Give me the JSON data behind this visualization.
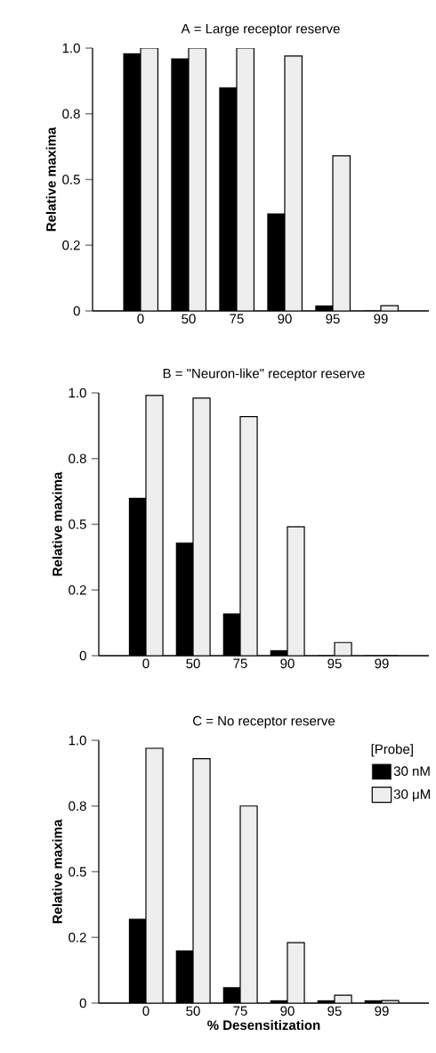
{
  "chart_data": [
    {
      "type": "bar",
      "title": "A = Large receptor reserve",
      "ylabel": "Relative maxima",
      "categories": [
        "0",
        "50",
        "75",
        "90",
        "95",
        "99"
      ],
      "series": [
        {
          "color": "#000000",
          "values": [
            0.98,
            0.96,
            0.85,
            0.37,
            0.02,
            0
          ]
        },
        {
          "color": "#eeeeee",
          "values": [
            1.0,
            1.0,
            1.0,
            0.97,
            0.59,
            0.02
          ]
        }
      ],
      "ylim": [
        0,
        1.0
      ],
      "yticks": [
        0,
        {
          "value": 0.25,
          "label": "0.2"
        },
        0.5,
        {
          "value": 0.75,
          "label": "0.8"
        },
        {
          "value": 1.0,
          "label": "1.0"
        }
      ]
    },
    {
      "type": "bar",
      "title": "B = \"Neuron-like\" receptor reserve",
      "ylabel": "Relative maxima",
      "categories": [
        "0",
        "50",
        "75",
        "90",
        "95",
        "99"
      ],
      "series": [
        {
          "color": "#000000",
          "values": [
            0.6,
            0.43,
            0.16,
            0.02,
            0,
            0
          ]
        },
        {
          "color": "#eeeeee",
          "values": [
            0.99,
            0.98,
            0.91,
            0.49,
            0.05,
            0
          ]
        }
      ],
      "ylim": [
        0,
        1.0
      ],
      "yticks": [
        0,
        {
          "value": 0.25,
          "label": "0.2"
        },
        0.5,
        {
          "value": 0.75,
          "label": "0.8"
        },
        {
          "value": 1.0,
          "label": "1.0"
        }
      ]
    },
    {
      "type": "bar",
      "title": "C = No receptor reserve",
      "ylabel": "Relative maxima",
      "xlabel": "% Desensitization",
      "legend_title": "[Probe]",
      "legend": "top right",
      "categories": [
        "0",
        "50",
        "75",
        "90",
        "95",
        "99"
      ],
      "series": [
        {
          "name": "30 nM",
          "color": "#000000",
          "values": [
            0.32,
            0.2,
            0.06,
            0.01,
            0.01,
            0.01
          ]
        },
        {
          "name": "30 μM",
          "color": "#eeeeee",
          "values": [
            0.97,
            0.93,
            0.75,
            0.23,
            0.03,
            0.01
          ]
        }
      ],
      "ylim": [
        0,
        1.0
      ],
      "yticks": [
        0,
        {
          "value": 0.25,
          "label": "0.2"
        },
        0.5,
        {
          "value": 0.75,
          "label": "0.8"
        },
        {
          "value": 1.0,
          "label": "1.0"
        }
      ]
    }
  ]
}
